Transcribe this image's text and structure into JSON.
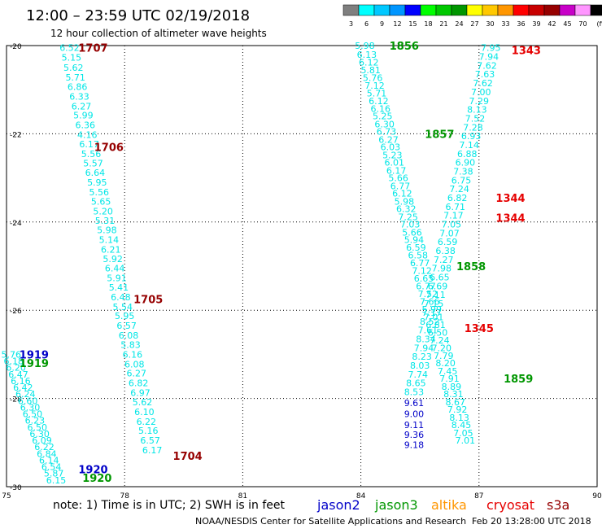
{
  "header": {
    "title": "12:00 – 23:59 UTC 02/19/2018",
    "subtitle": "12 hour collection of altimeter wave heights"
  },
  "legend_scale": {
    "labels": [
      "3",
      "6",
      "9",
      "12",
      "15",
      "18",
      "21",
      "24",
      "27",
      "30",
      "33",
      "36",
      "39",
      "42",
      "45",
      "70",
      "(ft)"
    ],
    "colors": [
      "#7f7f7f",
      "#00ffff",
      "#00c8ff",
      "#0096ff",
      "#0000ff",
      "#00ff00",
      "#00c800",
      "#009600",
      "#ffff00",
      "#ffc800",
      "#ff9600",
      "#ff0000",
      "#c80000",
      "#960000",
      "#c800c8",
      "#ff96ff",
      "#000000"
    ]
  },
  "footer": {
    "note": "note: 1) Time is in UTC; 2) SWH is in feet",
    "source": "NOAA/NESDIS Center for Satellite Applications and Research",
    "stamp": "Feb 20 13:28:00 UTC 2018"
  },
  "satellites": [
    {
      "name": "jason2",
      "color": "#0000c8"
    },
    {
      "name": "jason3",
      "color": "#009600"
    },
    {
      "name": "altika",
      "color": "#ff9600"
    },
    {
      "name": "cryosat",
      "color": "#e60000"
    },
    {
      "name": "s3a",
      "color": "#960000"
    }
  ],
  "chart_data": {
    "type": "scatter",
    "x_ticks": [
      "75",
      "78",
      "81",
      "84",
      "87",
      "90"
    ],
    "y_ticks": [
      "-20",
      "-22",
      "-24",
      "-26",
      "-28",
      "-30"
    ],
    "xlim": [
      75,
      90
    ],
    "ylim": [
      -30,
      -20
    ],
    "grid": true,
    "series": [
      {
        "name": "s3a",
        "color": "#00e6e6",
        "points": [
          [
            76.6,
            -20.05,
            "6.52"
          ],
          [
            76.65,
            -20.27,
            "5.15"
          ],
          [
            76.7,
            -20.5,
            "5.62"
          ],
          [
            76.75,
            -20.72,
            "5.71"
          ],
          [
            76.8,
            -20.93,
            "6.86"
          ],
          [
            76.85,
            -21.15,
            "6.33"
          ],
          [
            76.9,
            -21.37,
            "6.27"
          ],
          [
            76.95,
            -21.58,
            "5.99"
          ],
          [
            77.0,
            -21.8,
            "6.36"
          ],
          [
            77.05,
            -22.02,
            "4.16"
          ],
          [
            77.1,
            -22.23,
            "6.17"
          ],
          [
            77.15,
            -22.45,
            "5.56"
          ],
          [
            77.2,
            -22.67,
            "5.57"
          ],
          [
            77.25,
            -22.88,
            "6.64"
          ],
          [
            77.3,
            -23.1,
            "5.95"
          ],
          [
            77.35,
            -23.32,
            "5.56"
          ],
          [
            77.4,
            -23.53,
            "5.65"
          ],
          [
            77.45,
            -23.75,
            "5.20"
          ],
          [
            77.5,
            -23.97,
            "5.31"
          ],
          [
            77.55,
            -24.18,
            "5.98"
          ],
          [
            77.6,
            -24.4,
            "5.14"
          ],
          [
            77.65,
            -24.62,
            "6.21"
          ],
          [
            77.7,
            -24.83,
            "5.92"
          ],
          [
            77.75,
            -25.05,
            "6.44"
          ],
          [
            77.8,
            -25.27,
            "5.91"
          ],
          [
            77.85,
            -25.48,
            "5.41"
          ],
          [
            77.9,
            -25.7,
            "6.48"
          ],
          [
            77.95,
            -25.92,
            "5.54"
          ],
          [
            78.0,
            -26.13,
            "5.95"
          ],
          [
            78.05,
            -26.35,
            "6.57"
          ],
          [
            78.1,
            -26.57,
            "6.08"
          ],
          [
            78.15,
            -26.78,
            "5.83"
          ],
          [
            78.2,
            -27.0,
            "6.16"
          ],
          [
            78.25,
            -27.22,
            "6.08"
          ],
          [
            78.3,
            -27.43,
            "6.27"
          ],
          [
            78.35,
            -27.65,
            "6.82"
          ],
          [
            78.4,
            -27.87,
            "6.97"
          ],
          [
            78.45,
            -28.08,
            "5.62"
          ],
          [
            78.5,
            -28.3,
            "6.10"
          ],
          [
            78.55,
            -28.52,
            "6.22"
          ],
          [
            78.6,
            -28.73,
            "5.16"
          ],
          [
            78.65,
            -28.95,
            "6.57"
          ],
          [
            78.7,
            -29.17,
            "6.17"
          ]
        ]
      },
      {
        "name": "jason3",
        "color": "#00e6e6",
        "points": [
          [
            75.12,
            -27.0,
            "5.76"
          ],
          [
            75.18,
            -27.15,
            "6.18"
          ],
          [
            75.24,
            -27.3,
            "6.20"
          ],
          [
            75.3,
            -27.45,
            "6.47"
          ],
          [
            75.36,
            -27.6,
            "6.16"
          ],
          [
            75.42,
            -27.75,
            "6.42"
          ],
          [
            75.48,
            -27.9,
            "6.24"
          ],
          [
            75.54,
            -28.05,
            "6.60"
          ],
          [
            75.6,
            -28.2,
            "6.30"
          ],
          [
            75.66,
            -28.35,
            "6.50"
          ],
          [
            75.72,
            -28.5,
            "6.23"
          ],
          [
            75.78,
            -28.65,
            "6.50"
          ],
          [
            75.84,
            -28.8,
            "6.30"
          ],
          [
            75.9,
            -28.95,
            "6.09"
          ],
          [
            75.96,
            -29.1,
            "6.22"
          ],
          [
            76.02,
            -29.25,
            "6.84"
          ],
          [
            76.08,
            -29.4,
            "6.14"
          ],
          [
            76.14,
            -29.55,
            "6.54"
          ],
          [
            76.2,
            -29.7,
            "5.87"
          ],
          [
            76.26,
            -29.85,
            "6.15"
          ]
        ]
      },
      {
        "name": "jason3",
        "color": "#00e6e6",
        "points": [
          [
            84.1,
            -20.0,
            "5.98"
          ],
          [
            84.15,
            -20.2,
            "6.13"
          ],
          [
            84.2,
            -20.38,
            "6.12"
          ],
          [
            84.25,
            -20.55,
            "5.81"
          ],
          [
            84.3,
            -20.73,
            "5.76"
          ],
          [
            84.35,
            -20.9,
            "7.12"
          ],
          [
            84.4,
            -21.08,
            "5.71"
          ],
          [
            84.45,
            -21.25,
            "6.12"
          ],
          [
            84.5,
            -21.43,
            "6.16"
          ],
          [
            84.55,
            -21.6,
            "5.25"
          ],
          [
            84.6,
            -21.78,
            "6.30"
          ],
          [
            84.65,
            -21.95,
            "6.73"
          ],
          [
            84.7,
            -22.13,
            "6.27"
          ],
          [
            84.75,
            -22.3,
            "6.03"
          ],
          [
            84.8,
            -22.48,
            "5.23"
          ],
          [
            84.85,
            -22.65,
            "6.01"
          ],
          [
            84.9,
            -22.83,
            "6.17"
          ],
          [
            84.95,
            -23.0,
            "5.66"
          ],
          [
            85.0,
            -23.18,
            "6.77"
          ],
          [
            85.05,
            -23.35,
            "6.12"
          ],
          [
            85.1,
            -23.53,
            "5.98"
          ],
          [
            85.15,
            -23.7,
            "6.32"
          ],
          [
            85.2,
            -23.88,
            "7.25"
          ],
          [
            85.25,
            -24.05,
            "7.03"
          ],
          [
            85.3,
            -24.23,
            "5.66"
          ],
          [
            85.35,
            -24.4,
            "5.94"
          ],
          [
            85.4,
            -24.58,
            "6.59"
          ],
          [
            85.45,
            -24.75,
            "6.58"
          ],
          [
            85.5,
            -24.93,
            "6.77"
          ],
          [
            85.55,
            -25.1,
            "7.12"
          ],
          [
            85.6,
            -25.28,
            "6.65"
          ],
          [
            85.65,
            -25.45,
            "6.77"
          ],
          [
            85.7,
            -25.63,
            "7.52"
          ],
          [
            85.75,
            -25.8,
            "7.66"
          ],
          [
            85.8,
            -25.98,
            "5.99"
          ],
          [
            85.85,
            -26.15,
            "7.01"
          ],
          [
            85.9,
            -26.33,
            "6.81"
          ],
          [
            85.95,
            -26.5,
            "6.50"
          ],
          [
            86.0,
            -26.68,
            "7.24"
          ],
          [
            86.05,
            -26.85,
            "7.20"
          ],
          [
            86.1,
            -27.03,
            "7.79"
          ],
          [
            86.15,
            -27.2,
            "8.20"
          ],
          [
            86.2,
            -27.38,
            "7.45"
          ],
          [
            86.25,
            -27.55,
            "7.91"
          ],
          [
            86.3,
            -27.73,
            "8.89"
          ],
          [
            86.35,
            -27.9,
            "8.31"
          ],
          [
            86.4,
            -28.08,
            "8.67"
          ],
          [
            86.45,
            -28.25,
            "7.92"
          ],
          [
            86.5,
            -28.43,
            "8.13"
          ],
          [
            86.55,
            -28.6,
            "8.45"
          ],
          [
            86.6,
            -28.78,
            "7.05"
          ],
          [
            86.65,
            -28.95,
            "7.01"
          ]
        ]
      },
      {
        "name": "cryosat",
        "color": "#00e6e6",
        "points": [
          [
            87.3,
            -20.05,
            "7.95"
          ],
          [
            87.25,
            -20.25,
            "7.94"
          ],
          [
            87.2,
            -20.45,
            "7.62"
          ],
          [
            87.15,
            -20.65,
            "7.63"
          ],
          [
            87.1,
            -20.85,
            "7.62"
          ],
          [
            87.05,
            -21.05,
            "7.00"
          ],
          [
            87.0,
            -21.25,
            "7.29"
          ],
          [
            86.95,
            -21.45,
            "8.13"
          ],
          [
            86.9,
            -21.65,
            "7.52"
          ],
          [
            86.85,
            -21.85,
            "7.28"
          ],
          [
            86.8,
            -22.05,
            "6.93"
          ],
          [
            86.75,
            -22.25,
            "7.14"
          ],
          [
            86.7,
            -22.45,
            "6.88"
          ],
          [
            86.65,
            -22.65,
            "6.90"
          ],
          [
            86.6,
            -22.85,
            "7.38"
          ],
          [
            86.55,
            -23.05,
            "6.75"
          ],
          [
            86.5,
            -23.25,
            "7.24"
          ],
          [
            86.45,
            -23.45,
            "6.82"
          ],
          [
            86.4,
            -23.65,
            "6.71"
          ],
          [
            86.35,
            -23.85,
            "7.17"
          ],
          [
            86.3,
            -24.05,
            "7.05"
          ],
          [
            86.25,
            -24.25,
            "7.07"
          ],
          [
            86.2,
            -24.45,
            "6.59"
          ],
          [
            86.15,
            -24.65,
            "6.38"
          ],
          [
            86.1,
            -24.85,
            "7.27"
          ],
          [
            86.05,
            -25.05,
            "7.98"
          ],
          [
            86.0,
            -25.25,
            "6.65"
          ],
          [
            85.95,
            -25.45,
            "6.69"
          ],
          [
            85.9,
            -25.65,
            "7.11"
          ],
          [
            85.85,
            -25.85,
            "7.15"
          ],
          [
            85.8,
            -26.05,
            "7.17"
          ],
          [
            85.75,
            -26.25,
            "8.52"
          ],
          [
            85.7,
            -26.45,
            "7.61"
          ],
          [
            85.65,
            -26.65,
            "8.34"
          ],
          [
            85.6,
            -26.85,
            "7.94"
          ],
          [
            85.55,
            -27.05,
            "8.23"
          ],
          [
            85.5,
            -27.25,
            "8.03"
          ],
          [
            85.45,
            -27.45,
            "7.74"
          ],
          [
            85.4,
            -27.65,
            "8.65"
          ],
          [
            85.35,
            -27.85,
            "8.53"
          ]
        ]
      },
      {
        "name": "jason2",
        "color": "#0000c8",
        "points": [
          [
            85.35,
            -28.1,
            "9.61"
          ],
          [
            85.35,
            -28.35,
            "9.00"
          ],
          [
            85.35,
            -28.6,
            "9.11"
          ],
          [
            85.35,
            -28.82,
            "9.36"
          ],
          [
            85.35,
            -29.05,
            "9.18"
          ]
        ]
      }
    ],
    "time_labels": [
      {
        "x": 77.2,
        "y": -20.05,
        "text": "1707",
        "color": "#960000"
      },
      {
        "x": 77.6,
        "y": -22.3,
        "text": "1706",
        "color": "#960000"
      },
      {
        "x": 78.6,
        "y": -25.75,
        "text": "1705",
        "color": "#960000"
      },
      {
        "x": 79.6,
        "y": -29.3,
        "text": "1704",
        "color": "#960000"
      },
      {
        "x": 75.7,
        "y": -27.0,
        "text": "1919",
        "color": "#0000c8"
      },
      {
        "x": 75.7,
        "y": -27.2,
        "text": "1919",
        "color": "#009600"
      },
      {
        "x": 77.2,
        "y": -29.6,
        "text": "1920",
        "color": "#0000c8"
      },
      {
        "x": 77.3,
        "y": -29.8,
        "text": "1920",
        "color": "#009600"
      },
      {
        "x": 85.1,
        "y": -20.0,
        "text": "1856",
        "color": "#009600"
      },
      {
        "x": 86.0,
        "y": -22.0,
        "text": "1857",
        "color": "#009600"
      },
      {
        "x": 86.8,
        "y": -25.0,
        "text": "1858",
        "color": "#009600"
      },
      {
        "x": 88.0,
        "y": -27.55,
        "text": "1859",
        "color": "#009600"
      },
      {
        "x": 88.2,
        "y": -20.1,
        "text": "1343",
        "color": "#e60000"
      },
      {
        "x": 87.8,
        "y": -23.45,
        "text": "1344",
        "color": "#e60000"
      },
      {
        "x": 87.8,
        "y": -23.9,
        "text": "1344",
        "color": "#e60000"
      },
      {
        "x": 87.0,
        "y": -26.4,
        "text": "1345",
        "color": "#e60000"
      }
    ]
  }
}
